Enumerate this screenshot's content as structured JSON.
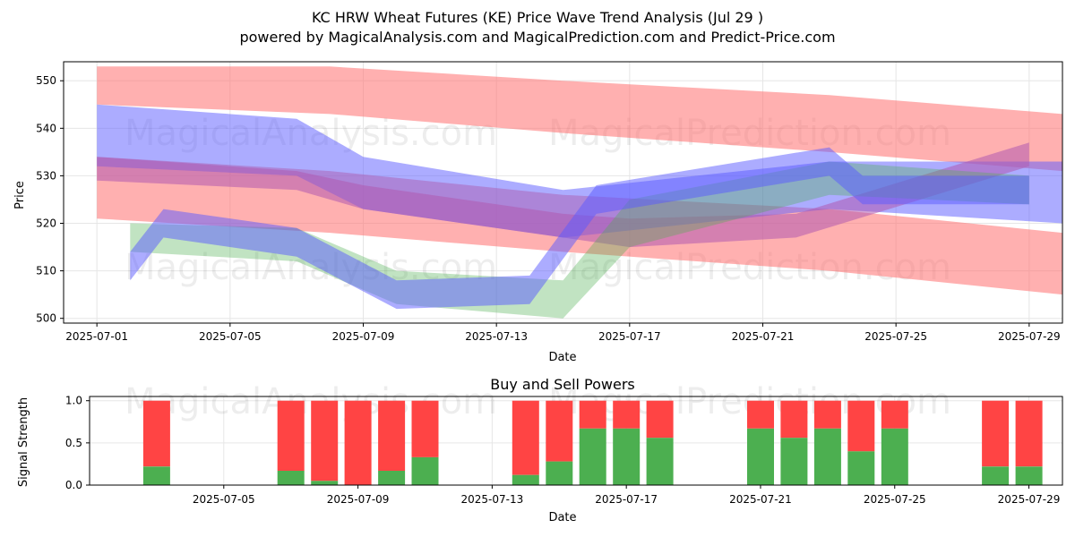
{
  "header": {
    "title": "KC HRW Wheat Futures (KE) Price Wave Trend Analysis (Jul 29 )",
    "subtitle": "powered by MagicalAnalysis.com and MagicalPrediction.com and Predict-Price.com"
  },
  "watermark": {
    "left": "MagicalAnalysis.com",
    "right": "MagicalPrediction.com"
  },
  "colors": {
    "red_band": "#ff6f6f",
    "blue_band": "#5a5aff",
    "purple_band": "#b05ab0",
    "green_band": "#4caf50",
    "orange_band": "#e0a050",
    "buy": "#4caf50",
    "sell": "#ff4444"
  },
  "chart_data": [
    {
      "type": "area",
      "title": "",
      "xlabel": "Date",
      "ylabel": "Price",
      "ylim": [
        499,
        554
      ],
      "xlim": [
        "2025-06-30",
        "2025-07-30"
      ],
      "x_ticks": [
        "2025-07-01",
        "2025-07-05",
        "2025-07-09",
        "2025-07-13",
        "2025-07-17",
        "2025-07-21",
        "2025-07-25",
        "2025-07-29"
      ],
      "y_ticks": [
        500,
        510,
        520,
        530,
        540,
        550
      ],
      "grid": true,
      "trend_bands": [
        {
          "color": "red",
          "x": [
            "2025-07-01",
            "2025-07-08",
            "2025-07-15",
            "2025-07-23",
            "2025-07-30"
          ],
          "upper": [
            553,
            553,
            550,
            547,
            543
          ],
          "lower": [
            545,
            543,
            539,
            535,
            531
          ]
        },
        {
          "color": "red",
          "x": [
            "2025-07-01",
            "2025-07-08",
            "2025-07-15",
            "2025-07-23",
            "2025-07-30"
          ],
          "upper": [
            534,
            531,
            526,
            523,
            518
          ],
          "lower": [
            521,
            518,
            514,
            510,
            505
          ]
        },
        {
          "color": "blue",
          "x": [
            "2025-07-01",
            "2025-07-07",
            "2025-07-09",
            "2025-07-15",
            "2025-07-23",
            "2025-07-30"
          ],
          "upper": [
            545,
            542,
            534,
            527,
            533,
            533
          ],
          "lower": [
            532,
            530,
            523,
            517,
            523,
            520
          ]
        },
        {
          "color": "purple",
          "x": [
            "2025-07-01",
            "2025-07-07",
            "2025-07-09",
            "2025-07-15",
            "2025-07-17",
            "2025-07-22",
            "2025-07-29"
          ],
          "upper": [
            534,
            531,
            528,
            522,
            521,
            522,
            537
          ],
          "lower": [
            529,
            527,
            523,
            517,
            515,
            517,
            532
          ]
        },
        {
          "color": "green",
          "x": [
            "2025-07-02",
            "2025-07-07",
            "2025-07-10",
            "2025-07-15",
            "2025-07-17",
            "2025-07-23",
            "2025-07-29"
          ],
          "upper": [
            520,
            519,
            510,
            508,
            525,
            533,
            530
          ],
          "lower": [
            514,
            512,
            503,
            500,
            515,
            526,
            524
          ]
        },
        {
          "color": "blue",
          "x": [
            "2025-07-02",
            "2025-07-03",
            "2025-07-07",
            "2025-07-10",
            "2025-07-14",
            "2025-07-16",
            "2025-07-23",
            "2025-07-24",
            "2025-07-29"
          ],
          "upper": [
            514,
            523,
            519,
            508,
            509,
            528,
            536,
            530,
            530
          ],
          "lower": [
            508,
            517,
            513,
            502,
            503,
            522,
            530,
            524,
            524
          ]
        }
      ]
    },
    {
      "type": "bar",
      "title": "Buy and Sell Powers",
      "xlabel": "Date",
      "ylabel": "Signal Strength",
      "ylim": [
        0,
        1.05
      ],
      "xlim": [
        "2025-07-01",
        "2025-07-30"
      ],
      "x_ticks": [
        "2025-07-05",
        "2025-07-09",
        "2025-07-13",
        "2025-07-17",
        "2025-07-21",
        "2025-07-25",
        "2025-07-29"
      ],
      "y_ticks": [
        0.0,
        0.5,
        1.0
      ],
      "y_tick_labels": [
        "0.0",
        "0.5",
        "1.0"
      ],
      "grid": true,
      "series": [
        {
          "name": "Buy",
          "color": "green"
        },
        {
          "name": "Sell",
          "color": "red"
        }
      ],
      "bars": [
        {
          "date": "2025-07-03",
          "buy": 0.22
        },
        {
          "date": "2025-07-07",
          "buy": 0.17
        },
        {
          "date": "2025-07-08",
          "buy": 0.05
        },
        {
          "date": "2025-07-09",
          "buy": 0.0
        },
        {
          "date": "2025-07-10",
          "buy": 0.17
        },
        {
          "date": "2025-07-11",
          "buy": 0.33
        },
        {
          "date": "2025-07-14",
          "buy": 0.12
        },
        {
          "date": "2025-07-15",
          "buy": 0.28
        },
        {
          "date": "2025-07-16",
          "buy": 0.67
        },
        {
          "date": "2025-07-17",
          "buy": 0.67
        },
        {
          "date": "2025-07-18",
          "buy": 0.56
        },
        {
          "date": "2025-07-21",
          "buy": 0.67
        },
        {
          "date": "2025-07-22",
          "buy": 0.56
        },
        {
          "date": "2025-07-23",
          "buy": 0.67
        },
        {
          "date": "2025-07-24",
          "buy": 0.4
        },
        {
          "date": "2025-07-25",
          "buy": 0.67
        },
        {
          "date": "2025-07-28",
          "buy": 0.22
        },
        {
          "date": "2025-07-29",
          "buy": 0.22
        }
      ]
    }
  ]
}
